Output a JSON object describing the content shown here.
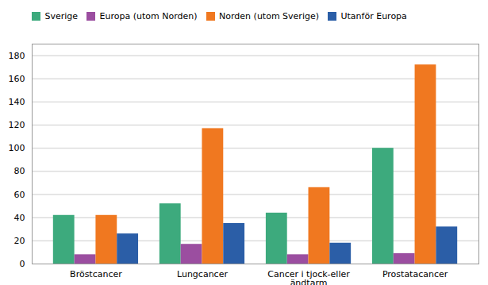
{
  "chart_data": {
    "type": "bar",
    "categories": [
      "Bröstcancer",
      "Lungcancer",
      "Cancer i tjock-eller\nändtarm",
      "Prostatacancer"
    ],
    "series": [
      {
        "name": "Sverige",
        "color": "#3DAA7D",
        "values": [
          42,
          52,
          44,
          100
        ]
      },
      {
        "name": "Europa (utom Norden)",
        "color": "#9B4EA0",
        "values": [
          8,
          17,
          8,
          9
        ]
      },
      {
        "name": "Norden (utom Sverige)",
        "color": "#F07820",
        "values": [
          42,
          117,
          66,
          172
        ]
      },
      {
        "name": "Utanför Europa",
        "color": "#2B5EA7",
        "values": [
          26,
          35,
          18,
          32
        ]
      }
    ],
    "ylim": [
      0,
      190
    ],
    "yticks": [
      0,
      20,
      40,
      60,
      80,
      100,
      120,
      140,
      160,
      180
    ],
    "grid": true,
    "legend": "top"
  }
}
